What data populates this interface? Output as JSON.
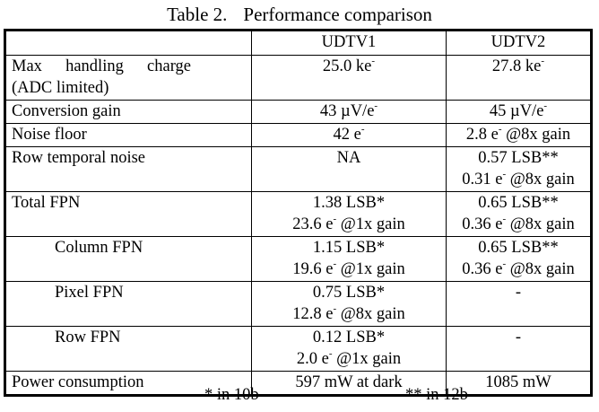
{
  "caption": {
    "label": "Table 2.",
    "title": "Performance comparison"
  },
  "header": [
    "",
    "UDTV1",
    "UDTV2"
  ],
  "rows": [
    {
      "label": [
        [
          "Max handling charge"
        ],
        [
          "(ADC limited)"
        ]
      ],
      "justify": true,
      "indent": false,
      "udtv1": [
        [
          {
            "t": "25.0 ke",
            "sup": "-"
          }
        ]
      ],
      "udtv2": [
        [
          {
            "t": "27.8 ke",
            "sup": "-"
          }
        ]
      ]
    },
    {
      "label": [
        [
          "Conversion gain"
        ]
      ],
      "indent": false,
      "udtv1": [
        [
          {
            "t": "43 µV/e",
            "sup": "-"
          }
        ]
      ],
      "udtv2": [
        [
          {
            "t": "45 µV/e",
            "sup": "-"
          }
        ]
      ]
    },
    {
      "label": [
        [
          "Noise floor"
        ]
      ],
      "indent": false,
      "udtv1": [
        [
          {
            "t": "42 e",
            "sup": "-"
          }
        ]
      ],
      "udtv2": [
        [
          {
            "t": "2.8 e",
            "sup": "-"
          },
          {
            "t": " @8x gain"
          }
        ]
      ]
    },
    {
      "label": [
        [
          "Row temporal noise"
        ]
      ],
      "indent": false,
      "udtv1": [
        [
          {
            "t": "NA"
          }
        ]
      ],
      "udtv2": [
        [
          {
            "t": "0.57 LSB**"
          }
        ],
        [
          {
            "t": "0.31 e",
            "sup": "-"
          },
          {
            "t": " @8x gain"
          }
        ]
      ]
    },
    {
      "label": [
        [
          "Total FPN"
        ]
      ],
      "indent": false,
      "udtv1": [
        [
          {
            "t": "1.38 LSB*"
          }
        ],
        [
          {
            "t": "23.6 e",
            "sup": "-"
          },
          {
            "t": " @1x gain"
          }
        ]
      ],
      "udtv2": [
        [
          {
            "t": "0.65 LSB**"
          }
        ],
        [
          {
            "t": "0.36 e",
            "sup": "-"
          },
          {
            "t": " @8x gain"
          }
        ]
      ]
    },
    {
      "label": [
        [
          "Column FPN"
        ]
      ],
      "indent": true,
      "udtv1": [
        [
          {
            "t": "1.15 LSB*"
          }
        ],
        [
          {
            "t": "19.6 e",
            "sup": "-"
          },
          {
            "t": " @1x gain"
          }
        ]
      ],
      "udtv2": [
        [
          {
            "t": "0.65 LSB**"
          }
        ],
        [
          {
            "t": "0.36 e",
            "sup": "-"
          },
          {
            "t": " @8x gain"
          }
        ]
      ]
    },
    {
      "label": [
        [
          "Pixel FPN"
        ]
      ],
      "indent": true,
      "udtv1": [
        [
          {
            "t": "0.75 LSB*"
          }
        ],
        [
          {
            "t": "12.8 e",
            "sup": "-"
          },
          {
            "t": " @8x gain"
          }
        ]
      ],
      "udtv2": [
        [
          {
            "t": "-"
          }
        ]
      ]
    },
    {
      "label": [
        [
          "Row FPN"
        ]
      ],
      "indent": true,
      "udtv1": [
        [
          {
            "t": "0.12 LSB*"
          }
        ],
        [
          {
            "t": "2.0 e",
            "sup": "-"
          },
          {
            "t": " @1x gain"
          }
        ]
      ],
      "udtv2": [
        [
          {
            "t": "-"
          }
        ]
      ]
    },
    {
      "label": [
        [
          "Power consumption"
        ]
      ],
      "indent": false,
      "udtv1": [
        [
          {
            "t": "597 mW at dark"
          }
        ]
      ],
      "udtv2": [
        [
          {
            "t": "1085 mW"
          }
        ]
      ]
    }
  ],
  "footnotes": [
    "* in 10b",
    "** in 12b"
  ]
}
